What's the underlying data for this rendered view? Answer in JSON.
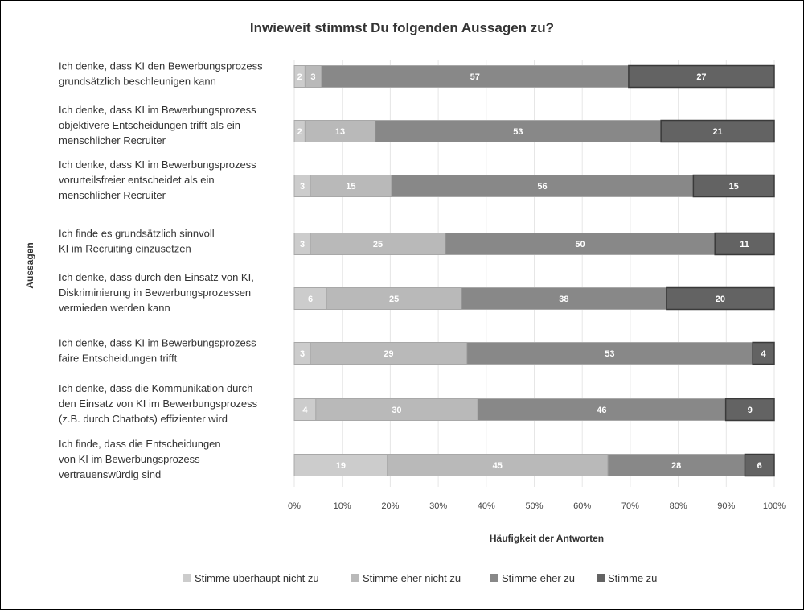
{
  "chart_data": {
    "type": "bar",
    "orientation": "horizontal",
    "stacked": "percent",
    "title": "Inwieweit stimmst Du folgenden Aussagen zu?",
    "xlabel": "Häufigkeit der Antworten",
    "ylabel": "Aussagen",
    "xlim": [
      0,
      100
    ],
    "xticks": [
      "0%",
      "10%",
      "20%",
      "30%",
      "40%",
      "50%",
      "60%",
      "70%",
      "80%",
      "90%",
      "100%"
    ],
    "grid": true,
    "legend": "bottom",
    "categories": [
      [
        "Ich denke, dass KI den Bewerbungsprozess",
        "grundsätzlich beschleunigen kann"
      ],
      [
        "Ich denke, dass KI im Bewerbungsprozess",
        "objektivere Entscheidungen trifft als ein",
        "menschlicher Recruiter"
      ],
      [
        "Ich denke, dass KI im Bewerbungsprozess",
        "vorurteilsfreier entscheidet als ein",
        "menschlicher Recruiter"
      ],
      [
        "Ich finde es grundsätzlich sinnvoll",
        "KI im Recruiting einzusetzen"
      ],
      [
        "Ich denke, dass durch den Einsatz von KI,",
        "Diskriminierung in Bewerbungsprozessen",
        "vermieden werden kann"
      ],
      [
        "Ich denke, dass KI im Bewerbungsprozess",
        "faire Entscheidungen trifft"
      ],
      [
        "Ich denke, dass die Kommunikation durch",
        "den Einsatz von KI im Bewerbungsprozess",
        "(z.B. durch Chatbots) effizienter wird"
      ],
      [
        "Ich finde, dass die Entscheidungen",
        "von KI im Bewerbungsprozess",
        "vertrauenswürdig sind"
      ]
    ],
    "series": [
      {
        "name": "Stimme überhaupt nicht zu",
        "color": "#cccccc",
        "values": [
          2,
          2,
          3,
          3,
          6,
          3,
          4,
          19
        ]
      },
      {
        "name": "Stimme eher nicht zu",
        "color": "#b9b9b9",
        "values": [
          3,
          13,
          15,
          25,
          25,
          29,
          30,
          45
        ]
      },
      {
        "name": "Stimme eher zu",
        "color": "#888888",
        "values": [
          57,
          53,
          56,
          50,
          38,
          53,
          46,
          28
        ]
      },
      {
        "name": "Stimme zu",
        "color": "#636363",
        "values": [
          27,
          21,
          15,
          11,
          20,
          4,
          9,
          6
        ]
      }
    ]
  }
}
